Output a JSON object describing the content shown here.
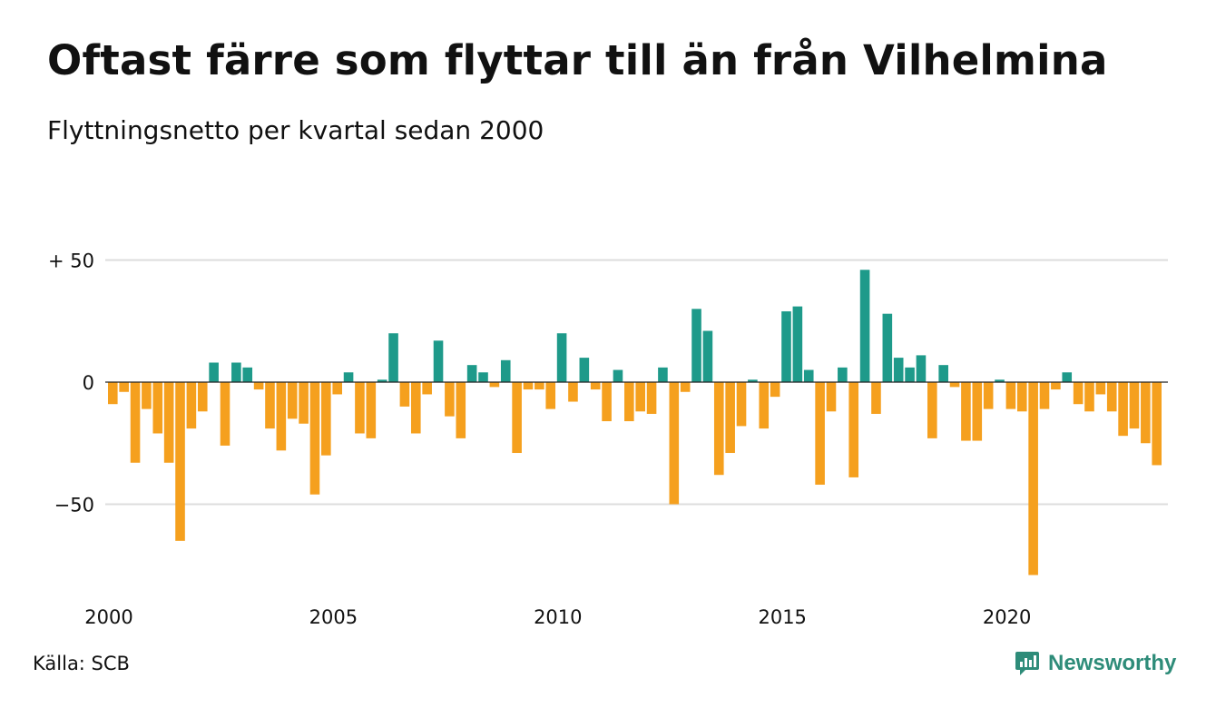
{
  "title": "Oftast färre som flyttar till än från Vilhelmina",
  "subtitle": "Flyttningsnetto per kvartal sedan 2000",
  "source": "Källa: SCB",
  "brand": {
    "name": "Newsworthy",
    "icon": "newsworthy-logo-icon",
    "color": "#2e8c79"
  },
  "colors": {
    "positive": "#1e9a8a",
    "negative": "#f5a01e",
    "grid": "#dddddd"
  },
  "chart_data": {
    "type": "bar",
    "title": "Oftast färre som flyttar till än från Vilhelmina",
    "subtitle": "Flyttningsnetto per kvartal sedan 2000",
    "xlabel": "",
    "ylabel": "",
    "start_year": 2000,
    "periods_per_year": 4,
    "ylim": [
      -82,
      52
    ],
    "y_ticks": [
      {
        "value": 50,
        "label": "+ 50"
      },
      {
        "value": 0,
        "label": "0"
      },
      {
        "value": -50,
        "label": "−50"
      }
    ],
    "x_ticks": [
      {
        "year": 2000,
        "label": "2000"
      },
      {
        "year": 2005,
        "label": "2005"
      },
      {
        "year": 2010,
        "label": "2010"
      },
      {
        "year": 2015,
        "label": "2015"
      },
      {
        "year": 2020,
        "label": "2020"
      }
    ],
    "grid": true,
    "legend": "none",
    "values": [
      -9,
      -4,
      -33,
      -11,
      -21,
      -33,
      -65,
      -19,
      -12,
      8,
      -26,
      8,
      6,
      -3,
      -19,
      -28,
      -15,
      -17,
      -46,
      -30,
      -5,
      4,
      -21,
      -23,
      1,
      20,
      -10,
      -21,
      -5,
      17,
      -14,
      -23,
      7,
      4,
      -2,
      9,
      -29,
      -3,
      -3,
      -11,
      20,
      -8,
      10,
      -3,
      -16,
      5,
      -16,
      -12,
      -13,
      6,
      -50,
      -4,
      30,
      21,
      -38,
      -29,
      -18,
      1,
      -19,
      -6,
      29,
      31,
      5,
      -42,
      -12,
      6,
      -39,
      46,
      -13,
      28,
      10,
      6,
      11,
      -23,
      7,
      -2,
      -24,
      -24,
      -11,
      1,
      -11,
      -12,
      -79,
      -11,
      -3,
      4,
      -9,
      -12,
      -5,
      -12,
      -22,
      -19,
      -25,
      -34
    ]
  }
}
